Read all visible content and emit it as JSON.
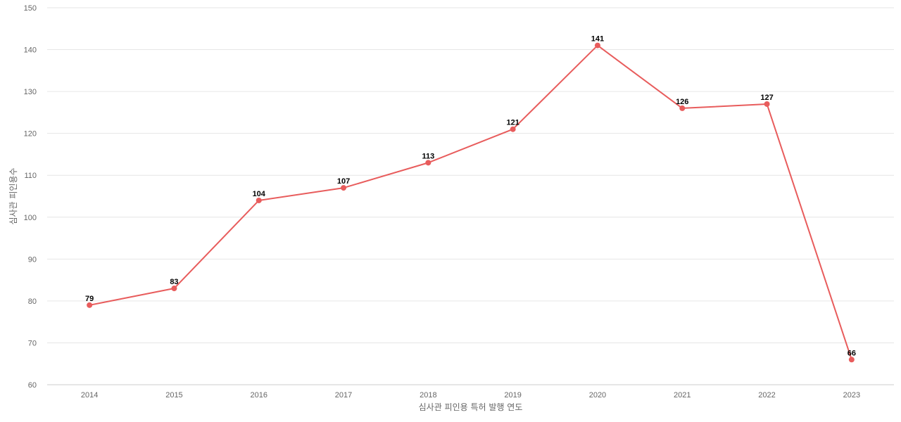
{
  "chart_data": {
    "type": "line",
    "title": "",
    "xlabel": "심사관 피인용 특허 발행 연도",
    "ylabel": "심사관 피인용수",
    "categories": [
      "2014",
      "2015",
      "2016",
      "2017",
      "2018",
      "2019",
      "2020",
      "2021",
      "2022",
      "2023"
    ],
    "series": [
      {
        "values": [
          79,
          83,
          104,
          107,
          113,
          121,
          141,
          126,
          127,
          66
        ]
      }
    ],
    "ylim": [
      60,
      150
    ],
    "yticks": [
      60,
      70,
      80,
      90,
      100,
      110,
      120,
      130,
      140,
      150
    ],
    "grid": true,
    "legend": "none",
    "data_labels": true,
    "colors": {
      "line": "#e85c5c",
      "grid": "#e6e6e6",
      "axis_text": "#666666",
      "data_label": "#000000"
    }
  }
}
